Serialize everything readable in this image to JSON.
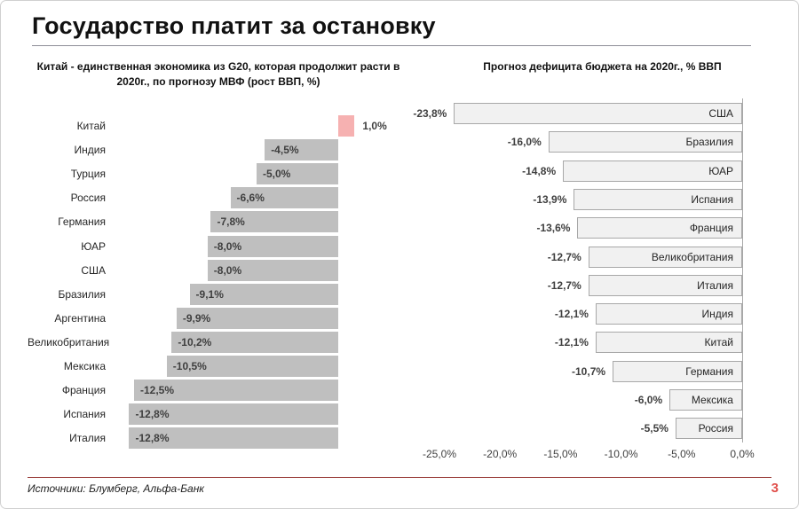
{
  "header": {
    "title": "Государство платит за остановку"
  },
  "footer": {
    "sources": "Источники: Блумберг, Альфа-Банк",
    "page_number": "3"
  },
  "colors": {
    "bar_gray": "#bfbfbf",
    "bar_highlight_pink": "#f6b1b1",
    "bar_light_fill": "#f1f1f1",
    "bar_light_border": "#a8a8a8",
    "footer_rule_red": "#9c423f",
    "page_number_red": "#e04e4a",
    "title_rule_gray": "#8d8d97"
  },
  "chart_data": [
    {
      "type": "bar",
      "orientation": "horizontal",
      "title": "Китай - единственная экономика из G20, которая продолжит расти в 2020г., по прогнозу МВФ (рост ВВП, %)",
      "categories": [
        "Китай",
        "Индия",
        "Турция",
        "Россия",
        "Германия",
        "ЮАР",
        "США",
        "Бразилия",
        "Аргентина",
        "Великобритания",
        "Мексика",
        "Франция",
        "Испания",
        "Италия"
      ],
      "values": [
        1.0,
        -4.5,
        -5.0,
        -6.6,
        -7.8,
        -8.0,
        -8.0,
        -9.1,
        -9.9,
        -10.2,
        -10.5,
        -12.5,
        -12.8,
        -12.8
      ],
      "value_labels": [
        "1,0%",
        "-4,5%",
        "-5,0%",
        "-6,6%",
        "-7,8%",
        "-8,0%",
        "-8,0%",
        "-9,1%",
        "-9,9%",
        "-10,2%",
        "-10,5%",
        "-12,5%",
        "-12,8%",
        "-12,8%"
      ],
      "highlight_index": 0,
      "xlim": [
        -13.5,
        1.5
      ],
      "grid": false,
      "axis_visible": false,
      "value_label_position": "inside-left, outside-right for positive"
    },
    {
      "type": "bar",
      "orientation": "horizontal",
      "title": "Прогноз дефицита бюджета на 2020г., % ВВП",
      "categories": [
        "США",
        "Бразилия",
        "ЮАР",
        "Испания",
        "Франция",
        "Великобритания",
        "Италия",
        "Индия",
        "Китай",
        "Германия",
        "Мексика",
        "Россия"
      ],
      "values": [
        -23.8,
        -16.0,
        -14.8,
        -13.9,
        -13.6,
        -12.7,
        -12.7,
        -12.1,
        -12.1,
        -10.7,
        -6.0,
        -5.5
      ],
      "value_labels": [
        "-23,8%",
        "-16,0%",
        "-14,8%",
        "-13,9%",
        "-13,6%",
        "-12,7%",
        "-12,7%",
        "-12,1%",
        "-12,1%",
        "-10,7%",
        "-6,0%",
        "-5,5%"
      ],
      "axis_ticks": [
        "-25,0%",
        "-20,0%",
        "-15,0%",
        "-10,0%",
        "-5,0%",
        "0,0%"
      ],
      "axis_values": [
        -25,
        -20,
        -15,
        -10,
        -5,
        0
      ],
      "xlim": [
        -27,
        0
      ],
      "grid": false,
      "axis_visible": true,
      "value_label_position": "outside-left, category inside-right"
    }
  ]
}
